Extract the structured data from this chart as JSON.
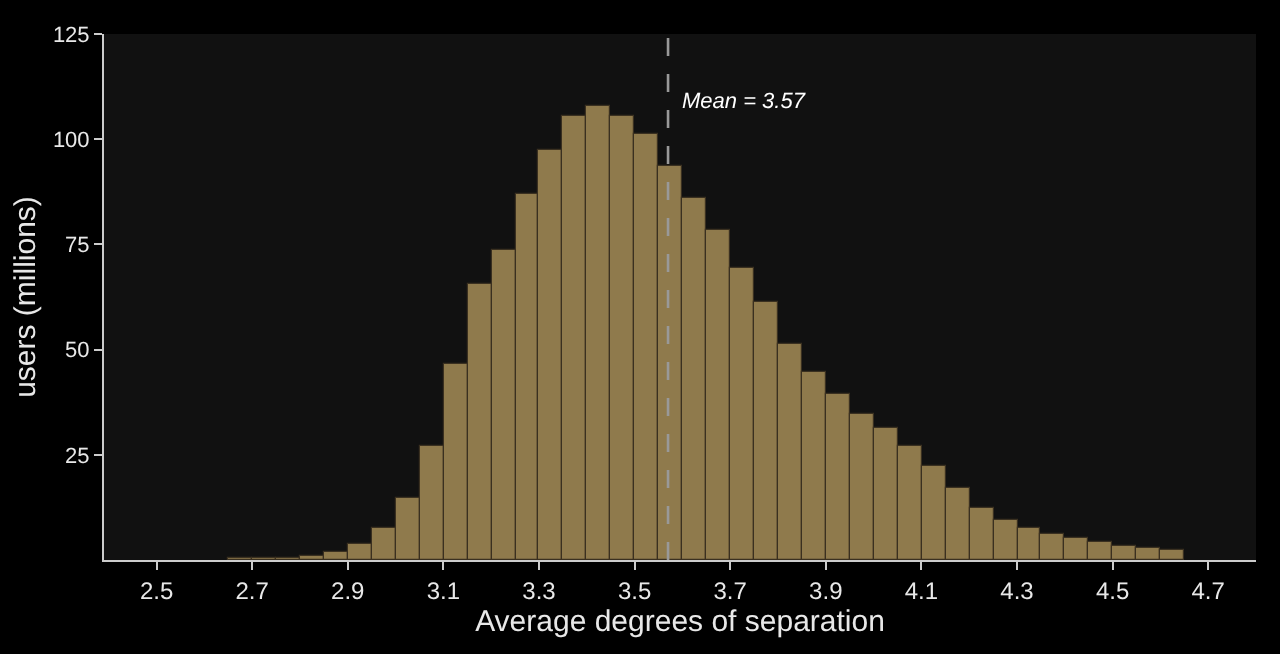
{
  "chart_data": {
    "type": "histogram",
    "xlabel": "Average degrees of separation",
    "ylabel": "users (millions)",
    "bins": [
      2.65,
      2.7,
      2.75,
      2.8,
      2.85,
      2.9,
      2.95,
      3.0,
      3.05,
      3.1,
      3.15,
      3.2,
      3.25,
      3.3,
      3.35,
      3.4,
      3.45,
      3.5,
      3.55,
      3.6,
      3.65,
      3.7,
      3.75,
      3.8,
      3.85,
      3.9,
      3.95,
      4.0,
      4.05,
      4.1,
      4.15,
      4.2,
      4.25,
      4.3,
      4.35,
      4.4,
      4.45,
      4.5,
      4.55,
      4.6,
      4.65
    ],
    "values": [
      0.3,
      0.3,
      0.5,
      1.0,
      1.8,
      3.8,
      7.4,
      14.5,
      27.3,
      46.8,
      65.5,
      73.8,
      87.1,
      97.4,
      105.3,
      107.7,
      105.6,
      101.1,
      93.8,
      85.9,
      78.3,
      69.2,
      61.4,
      51.5,
      44.7,
      39.4,
      34.9,
      31.4,
      27.1,
      22.3,
      17,
      12.4,
      9.4,
      7.4,
      6.2,
      5,
      4.1,
      3.3,
      2.7,
      2.3
    ],
    "color": "#8f7a4c",
    "xlim": [
      2.39,
      4.8
    ],
    "xticks": [
      2.5,
      2.7,
      2.9,
      3.1,
      3.3,
      3.5,
      3.7,
      3.9,
      4.1,
      4.3,
      4.5,
      4.7
    ],
    "ylim": [
      0,
      125
    ],
    "yticks": [
      25,
      50,
      75,
      100,
      125
    ],
    "ref_lines": [
      {
        "axis": "x",
        "value": 3.57,
        "label": "Mean = 3.57",
        "color": "#999999",
        "line_style": "dashed"
      }
    ]
  }
}
